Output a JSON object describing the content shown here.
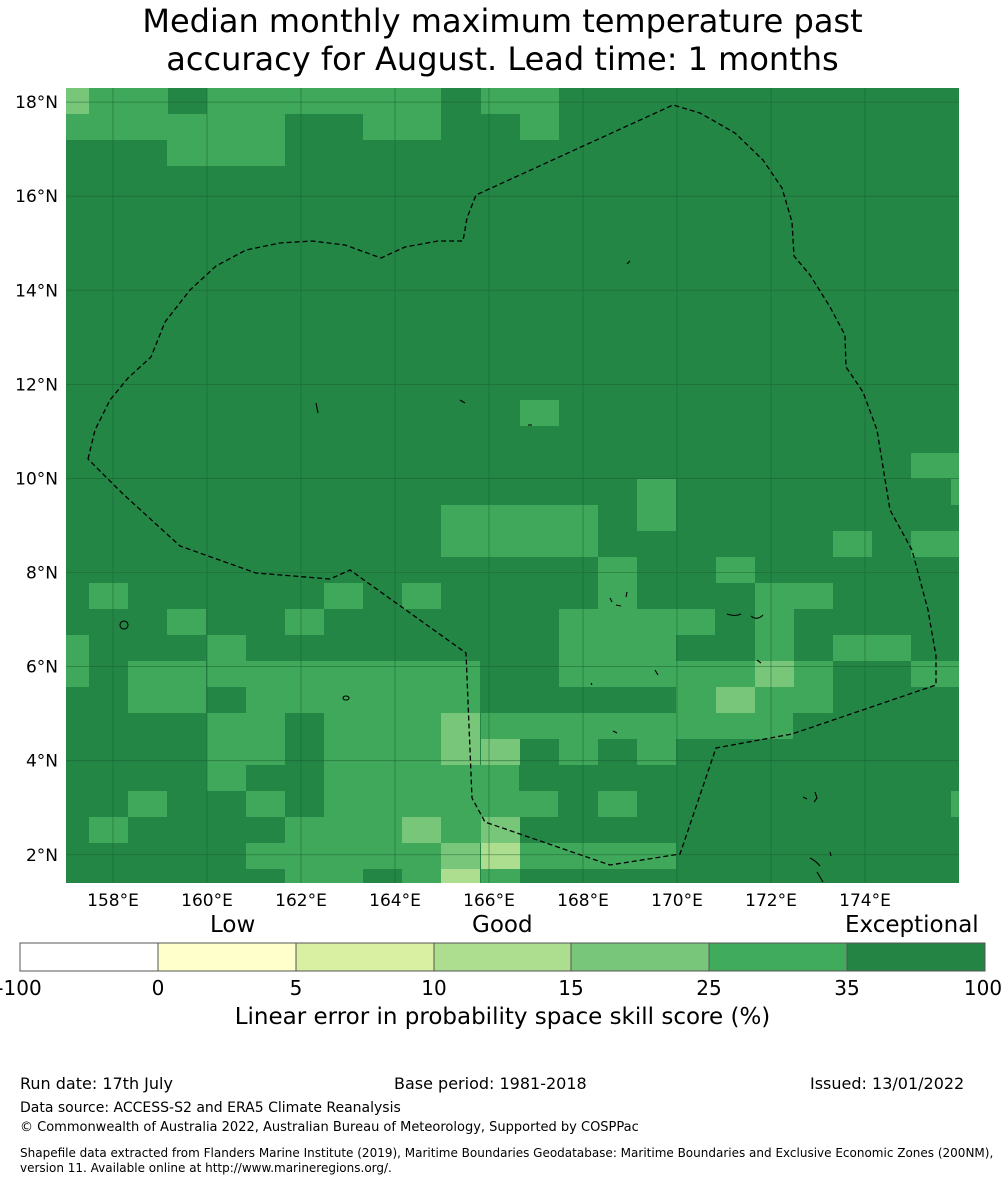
{
  "title_line1": "Median monthly maximum temperature past",
  "title_line2": "accuracy for August. Lead time: 1 months",
  "map": {
    "lon_range": [
      157,
      176
    ],
    "lat_range": [
      1.4,
      18.3
    ],
    "lon_ticks": [
      "158°E",
      "160°E",
      "162°E",
      "164°E",
      "166°E",
      "168°E",
      "170°E",
      "172°E",
      "174°E"
    ],
    "lat_ticks": [
      "18°N",
      "16°N",
      "14°N",
      "12°N",
      "10°N",
      "8°N",
      "6°N",
      "4°N",
      "2°N"
    ],
    "base_color": "#238645",
    "eez_boundary": "dashed"
  },
  "colorbar": {
    "category_labels": [
      "Low",
      "Good",
      "Exceptional"
    ],
    "ticks": [
      "-100",
      "0",
      "5",
      "10",
      "15",
      "25",
      "35",
      "100"
    ],
    "colors": [
      "#ffffff",
      "#ffffcc",
      "#d9f0a3",
      "#addd8e",
      "#78c679",
      "#41ab5d",
      "#238443"
    ],
    "axis_label": "Linear error in probability space skill score (%)"
  },
  "footer": {
    "run_date": "Run date: 17th July",
    "base_period": "Base period: 1981-2018",
    "issued": "Issued: 13/01/2022",
    "data_source": "Data source: ACCESS-S2 and ERA5 Climate Reanalysis",
    "copyright": "© Commonwealth of Australia 2022, Australian Bureau of Meteorology, Supported by COSPPac",
    "shapefile": "Shapefile data extracted from Flanders Marine Institute (2019), Maritime Boundaries Geodatabase: Maritime Boundaries and Exclusive Economic Zones (200NM), version 11. Available online at http://www.marineregions.org/."
  }
}
